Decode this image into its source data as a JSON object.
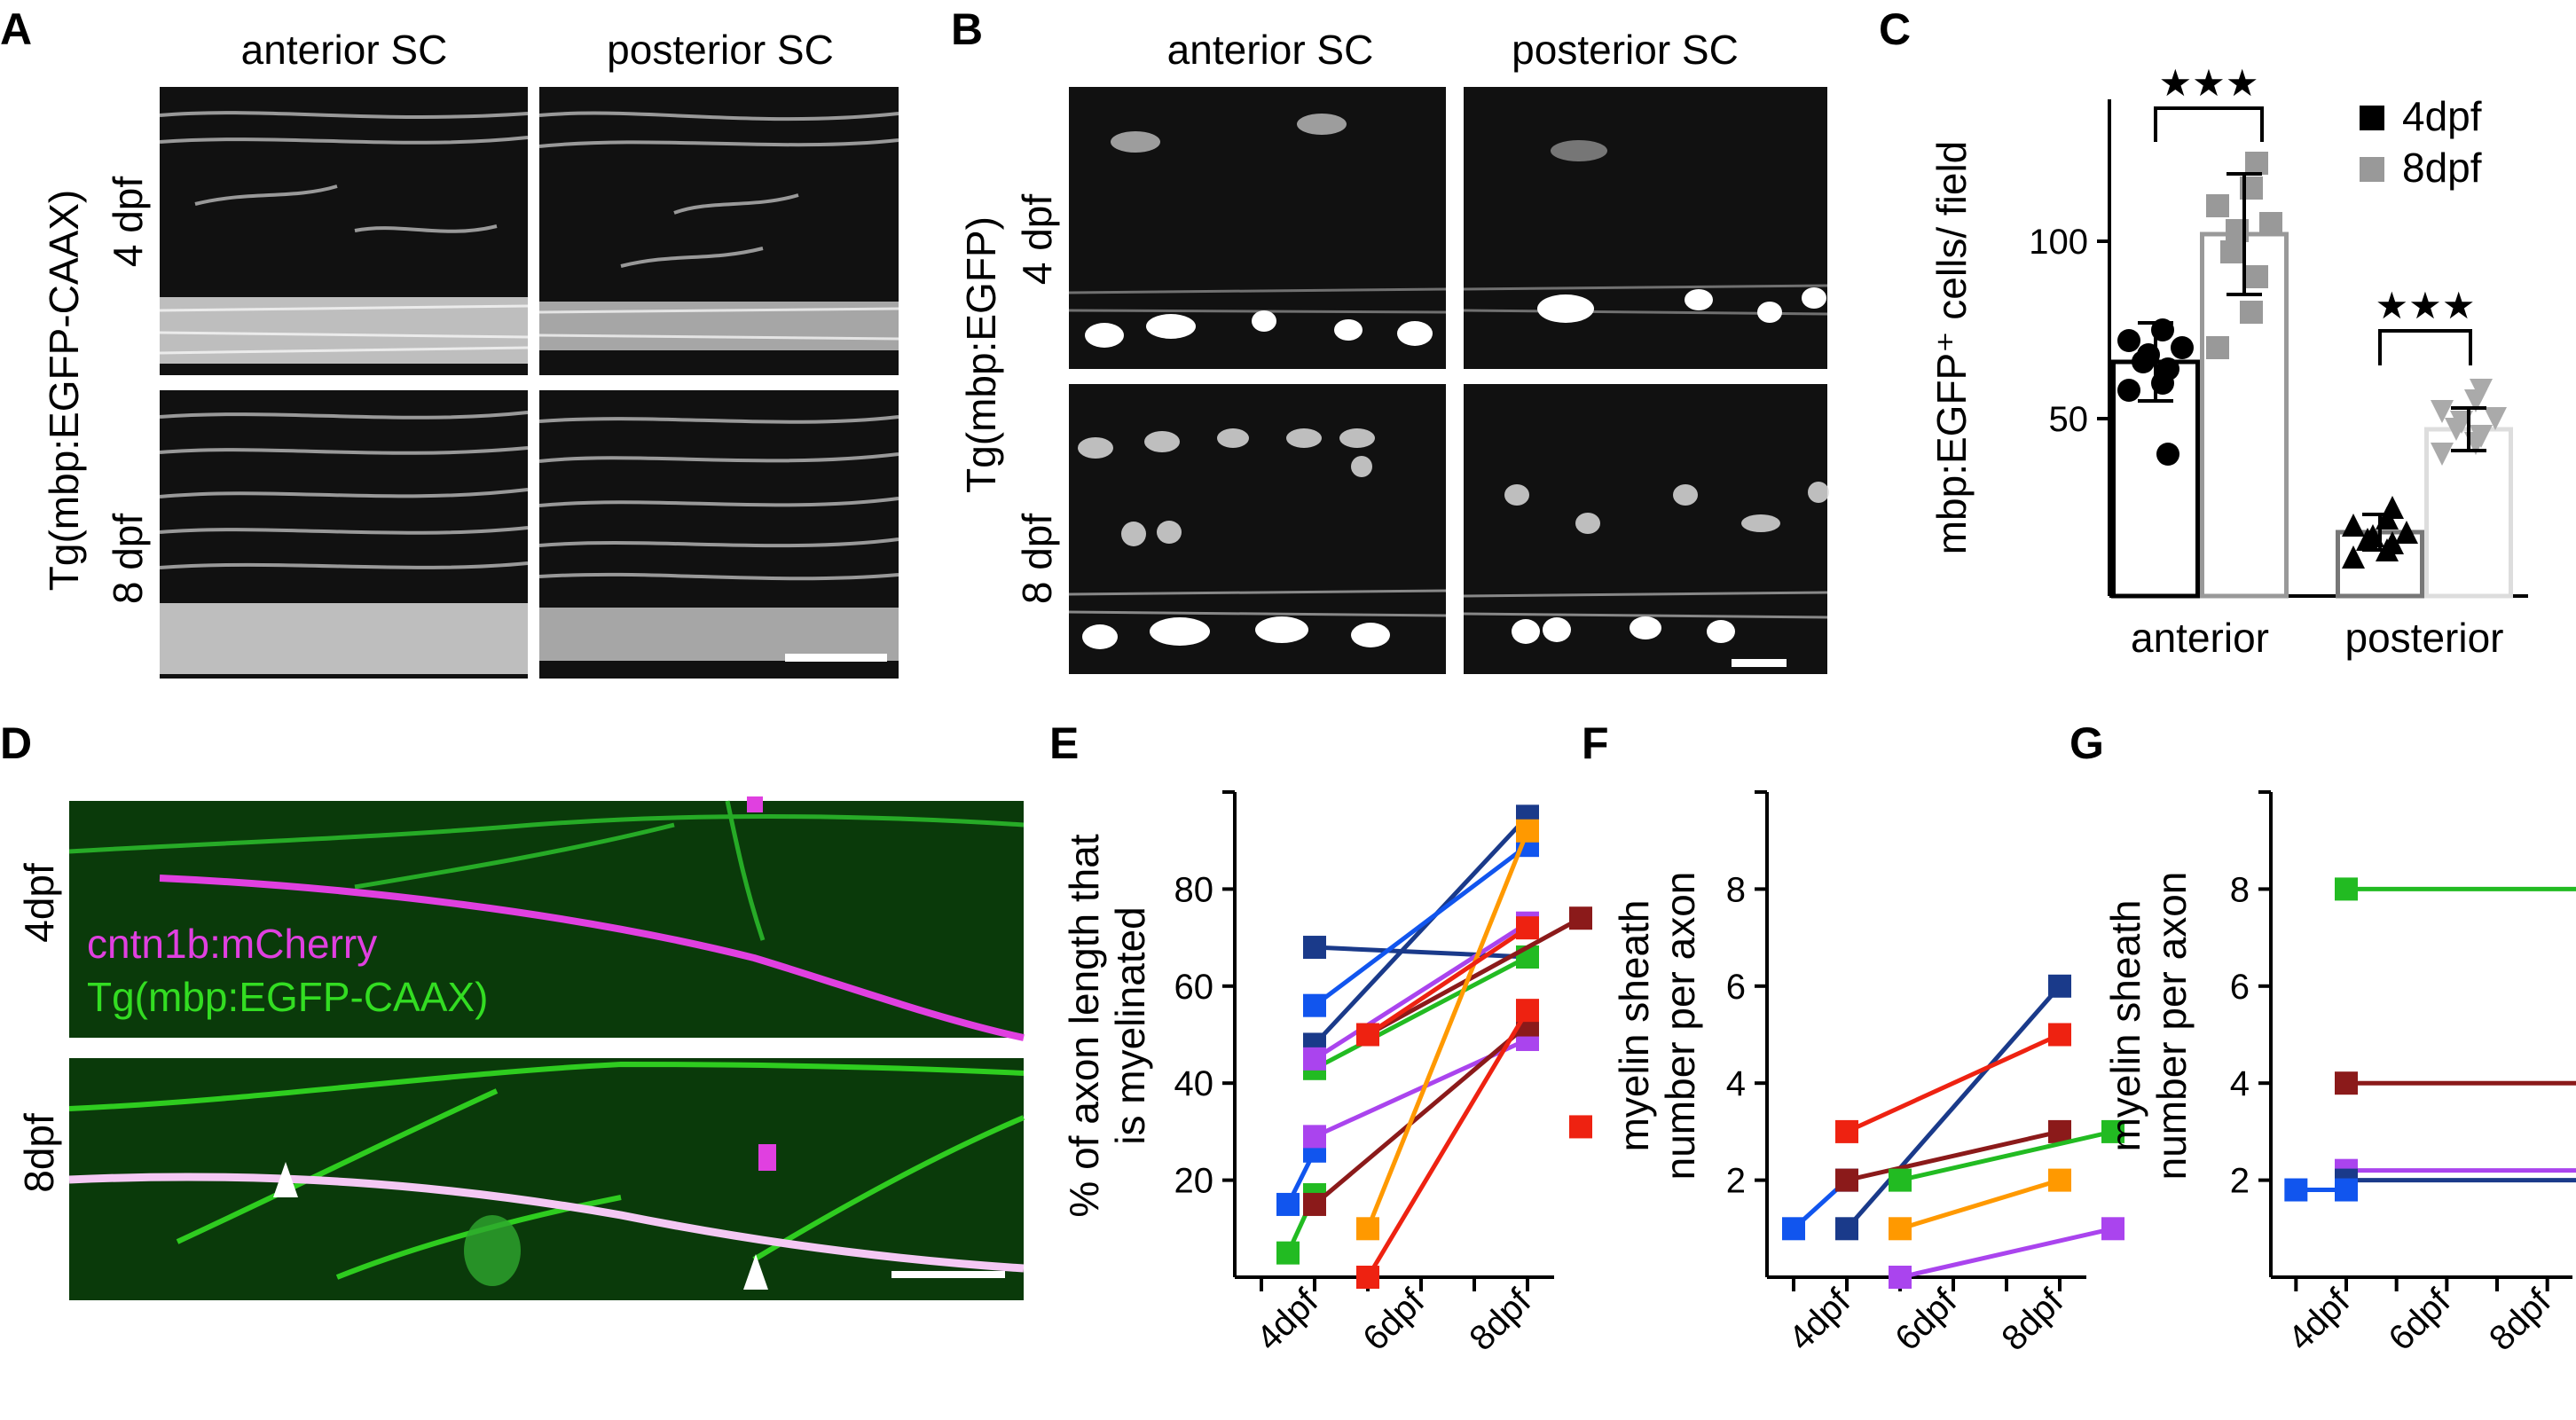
{
  "panels": {
    "A": {
      "letter": "A",
      "col_labels": [
        "anterior SC",
        "posterior SC"
      ],
      "row_label_line1": "Tg(mbp:EGFP-CAAX)",
      "row_labels": [
        "4 dpf",
        "8 dpf"
      ]
    },
    "B": {
      "letter": "B",
      "col_labels": [
        "anterior SC",
        "posterior SC"
      ],
      "row_label_line1": "Tg(mbp:EGFP)",
      "row_labels": [
        "4 dpf",
        "8 dpf"
      ]
    },
    "C": {
      "letter": "C"
    },
    "D": {
      "letter": "D",
      "row_labels": [
        "4dpf",
        "8dpf"
      ],
      "legend": [
        "cntn1b:mCherry",
        "Tg(mbp:EGFP-CAAX)"
      ],
      "colors": {
        "magenta": "#e040e0",
        "green": "#33dd22",
        "background": "#0a3a0a"
      }
    },
    "E": {
      "letter": "E"
    },
    "F": {
      "letter": "F"
    },
    "G": {
      "letter": "G"
    }
  },
  "chart_data": [
    {
      "id": "C",
      "type": "bar",
      "ylabel": "mbp:EGFP⁺ cells/ field",
      "categories": [
        "anterior",
        "posterior"
      ],
      "ylim": [
        0,
        140
      ],
      "yticks": [
        50,
        100
      ],
      "legend": [
        "4dpf",
        "8dpf"
      ],
      "legend_position": "top-right",
      "significance": "★★★",
      "series": [
        {
          "name": "4dpf",
          "color": "#000000",
          "marker": "circle",
          "means": [
            66,
            18
          ],
          "sd": [
            11,
            5
          ],
          "points": [
            [
              58,
              60,
              64,
              66,
              68,
              70,
              72,
              75,
              40
            ],
            [
              11,
              13,
              15,
              16,
              17,
              18,
              20,
              22,
              25
            ]
          ]
        },
        {
          "name": "8dpf",
          "color": "#999999",
          "marker": "square",
          "means": [
            102,
            47
          ],
          "sd": [
            17,
            6
          ],
          "points": [
            [
              70,
              80,
              90,
              97,
              103,
              105,
              110,
              115,
              122
            ],
            [
              40,
              43,
              45,
              47,
              49,
              50,
              52,
              55,
              58
            ]
          ]
        }
      ]
    },
    {
      "id": "E",
      "type": "line",
      "ylabel_lines": [
        "% of axon length that",
        "is myelinated"
      ],
      "xticks": [
        "4dpf",
        "6dpf",
        "8dpf"
      ],
      "xlim": [
        3,
        9
      ],
      "ylim": [
        0,
        100
      ],
      "yticks": [
        20,
        40,
        60,
        80
      ],
      "series": [
        {
          "color": "#1a3a8a",
          "x": [
            4,
            8
          ],
          "y": [
            68,
            66
          ]
        },
        {
          "color": "#1a3a8a",
          "x": [
            4,
            8
          ],
          "y": [
            48,
            95
          ]
        },
        {
          "color": "#1155ee",
          "x": [
            4,
            8
          ],
          "y": [
            56,
            89
          ]
        },
        {
          "color": "#1155ee",
          "x": [
            3.5,
            4
          ],
          "y": [
            15,
            26
          ]
        },
        {
          "color": "#22bb22",
          "x": [
            4,
            8
          ],
          "y": [
            43,
            66
          ]
        },
        {
          "color": "#22bb22",
          "x": [
            3.5,
            4
          ],
          "y": [
            5,
            17
          ]
        },
        {
          "color": "#aa44ee",
          "x": [
            4,
            8
          ],
          "y": [
            45,
            73
          ]
        },
        {
          "color": "#aa44ee",
          "x": [
            4,
            8
          ],
          "y": [
            29,
            49
          ]
        },
        {
          "color": "#8b1a1a",
          "x": [
            5,
            9
          ],
          "y": [
            50,
            74
          ]
        },
        {
          "color": "#8b1a1a",
          "x": [
            4,
            8
          ],
          "y": [
            15,
            52
          ]
        },
        {
          "color": "#ff9900",
          "x": [
            5,
            8
          ],
          "y": [
            10,
            92
          ]
        },
        {
          "color": "#ee2211",
          "x": [
            5,
            8
          ],
          "y": [
            0,
            55
          ]
        },
        {
          "color": "#ee2211",
          "x": [
            5,
            8
          ],
          "y": [
            50,
            72
          ]
        },
        {
          "color": "#ee2211",
          "x": [
            9
          ],
          "y": [
            31
          ]
        }
      ]
    },
    {
      "id": "F",
      "type": "line",
      "ylabel_lines": [
        "myelin sheath",
        "number per axon"
      ],
      "xticks": [
        "4dpf",
        "6dpf",
        "8dpf"
      ],
      "xlim": [
        3,
        9
      ],
      "ylim": [
        0,
        10
      ],
      "yticks": [
        2,
        4,
        6,
        8
      ],
      "series": [
        {
          "color": "#1155ee",
          "x": [
            3,
            4
          ],
          "y": [
            1,
            2
          ]
        },
        {
          "color": "#1a3a8a",
          "x": [
            4,
            8
          ],
          "y": [
            1,
            6
          ]
        },
        {
          "color": "#ee2211",
          "x": [
            4,
            8
          ],
          "y": [
            3,
            5
          ]
        },
        {
          "color": "#8b1a1a",
          "x": [
            4,
            8
          ],
          "y": [
            2,
            3
          ]
        },
        {
          "color": "#22bb22",
          "x": [
            5,
            9
          ],
          "y": [
            2,
            3
          ]
        },
        {
          "color": "#ff9900",
          "x": [
            5,
            8
          ],
          "y": [
            1,
            2
          ]
        },
        {
          "color": "#aa44ee",
          "x": [
            5,
            9
          ],
          "y": [
            0,
            1
          ]
        }
      ]
    },
    {
      "id": "G",
      "type": "line",
      "ylabel_lines": [
        "myelin sheath",
        "number per axon"
      ],
      "xticks": [
        "4dpf",
        "6dpf",
        "8dpf"
      ],
      "xlim": [
        3,
        9
      ],
      "ylim": [
        0,
        10
      ],
      "yticks": [
        2,
        4,
        6,
        8
      ],
      "series": [
        {
          "color": "#22bb22",
          "x": [
            4,
            9
          ],
          "y": [
            8,
            8
          ]
        },
        {
          "color": "#8b1a1a",
          "x": [
            4,
            9
          ],
          "y": [
            4,
            4
          ]
        },
        {
          "color": "#aa44ee",
          "x": [
            4,
            9
          ],
          "y": [
            2.2,
            2.2
          ]
        },
        {
          "color": "#1a3a8a",
          "x": [
            4,
            9
          ],
          "y": [
            2,
            2
          ]
        },
        {
          "color": "#1155ee",
          "x": [
            3,
            4
          ],
          "y": [
            1.8,
            1.8
          ]
        }
      ]
    }
  ]
}
